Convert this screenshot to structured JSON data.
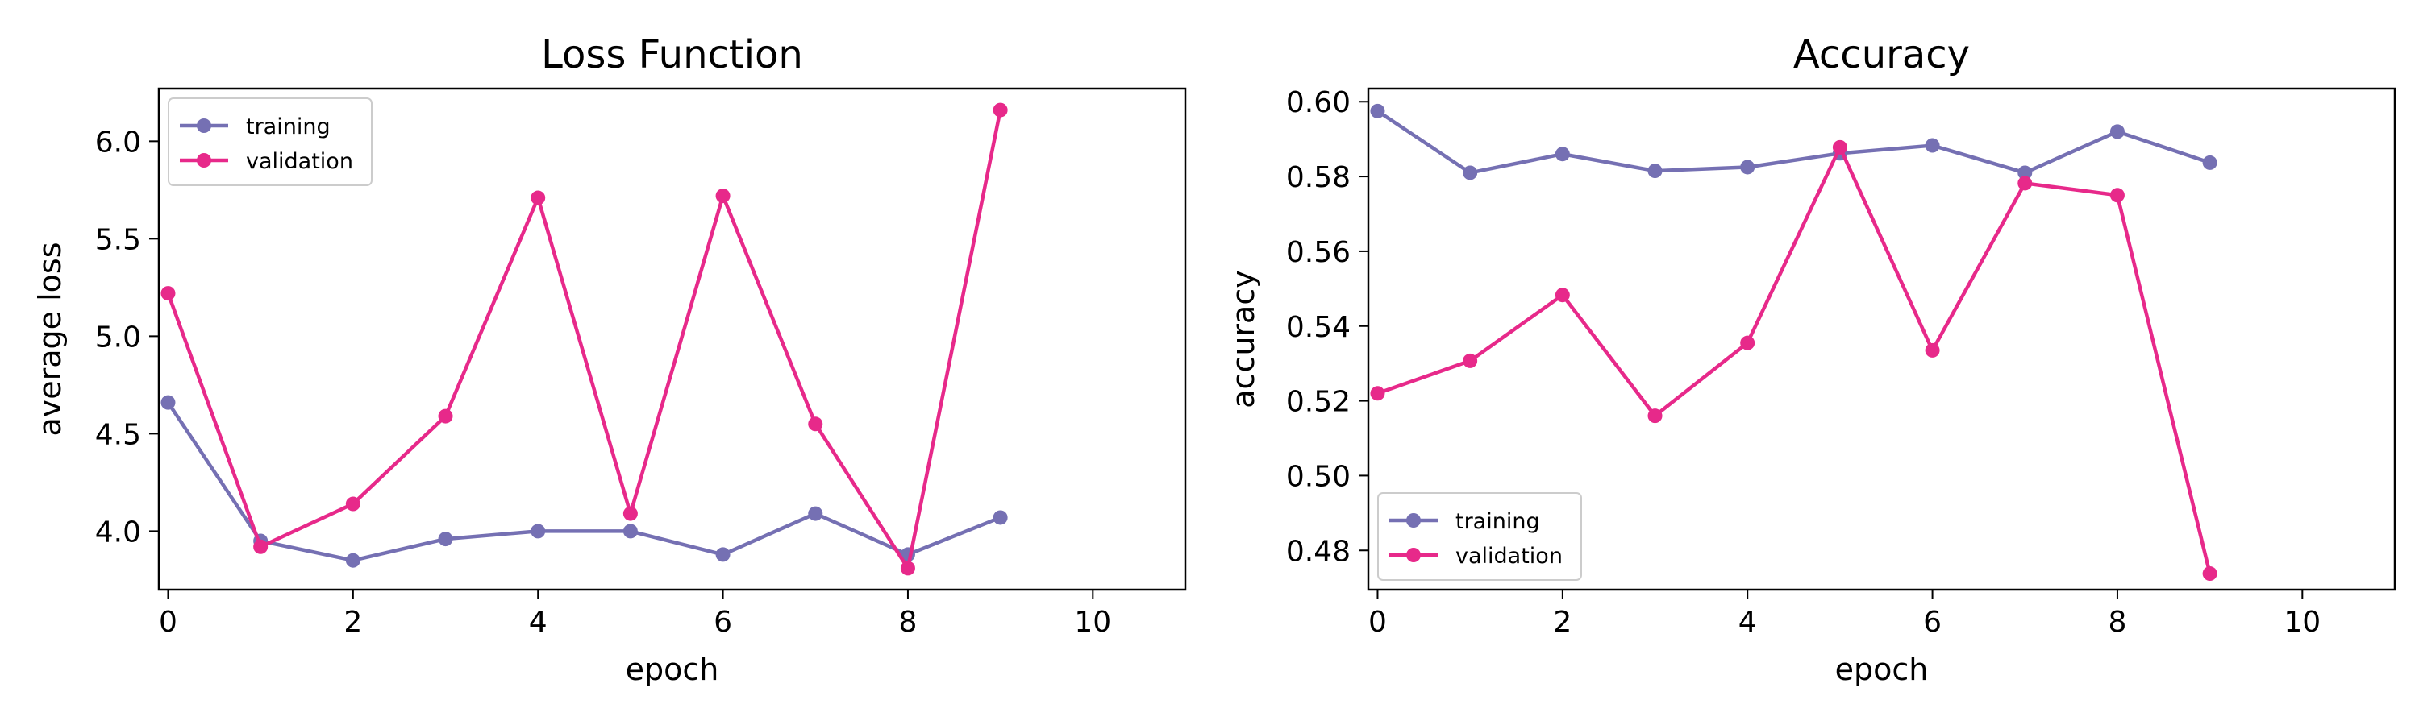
{
  "chart_data": [
    {
      "type": "line",
      "title": "Loss Function",
      "xlabel": "epoch",
      "ylabel": "average loss",
      "xlim": [
        -0.1,
        11.0
      ],
      "ylim": [
        3.7,
        6.27
      ],
      "xticks": [
        0,
        2,
        4,
        6,
        8,
        10
      ],
      "yticks": [
        4.0,
        4.5,
        5.0,
        5.5,
        6.0
      ],
      "ytick_labels": [
        "4.0",
        "4.5",
        "5.0",
        "5.5",
        "6.0"
      ],
      "legend_position": "upper-left",
      "grid": false,
      "x": [
        0,
        1,
        2,
        3,
        4,
        5,
        6,
        7,
        8,
        9
      ],
      "series": [
        {
          "name": "training",
          "color": "#7570b3",
          "values": [
            4.66,
            3.95,
            3.85,
            3.96,
            4.0,
            4.0,
            3.88,
            4.09,
            3.88,
            4.07
          ]
        },
        {
          "name": "validation",
          "color": "#e7298a",
          "values": [
            5.22,
            3.92,
            4.14,
            4.59,
            5.71,
            4.09,
            5.72,
            4.55,
            3.81,
            6.16
          ]
        }
      ]
    },
    {
      "type": "line",
      "title": "Accuracy",
      "xlabel": "epoch",
      "ylabel": "accuracy",
      "xlim": [
        -0.1,
        11.0
      ],
      "ylim": [
        0.4695,
        0.6035
      ],
      "xticks": [
        0,
        2,
        4,
        6,
        8,
        10
      ],
      "yticks": [
        0.48,
        0.5,
        0.52,
        0.54,
        0.56,
        0.58,
        0.6
      ],
      "ytick_labels": [
        "0.48",
        "0.50",
        "0.52",
        "0.54",
        "0.56",
        "0.58",
        "0.60"
      ],
      "legend_position": "lower-left",
      "grid": false,
      "x": [
        0,
        1,
        2,
        3,
        4,
        5,
        6,
        7,
        8,
        9
      ],
      "series": [
        {
          "name": "training",
          "color": "#7570b3",
          "values": [
            0.5975,
            0.581,
            0.586,
            0.5815,
            0.5825,
            0.5862,
            0.5883,
            0.581,
            0.592,
            0.5837
          ]
        },
        {
          "name": "validation",
          "color": "#e7298a",
          "values": [
            0.522,
            0.5307,
            0.5483,
            0.516,
            0.5355,
            0.5878,
            0.5335,
            0.5782,
            0.575,
            0.4738
          ]
        }
      ]
    }
  ]
}
